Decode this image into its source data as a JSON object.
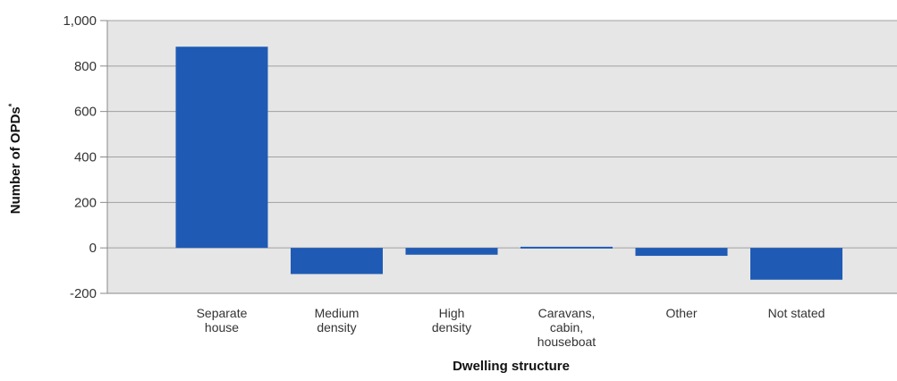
{
  "chart_data": {
    "type": "bar",
    "title": "",
    "xlabel": "Dwelling structure",
    "ylabel": "Number of OPDs",
    "ylabel_superscript": "*",
    "categories": [
      [
        "Separate",
        "house"
      ],
      [
        "Medium",
        "density"
      ],
      [
        "High",
        "density"
      ],
      [
        "Caravans,",
        "cabin,",
        "houseboat"
      ],
      [
        "Other"
      ],
      [
        "Not stated"
      ]
    ],
    "values": [
      885,
      -115,
      -30,
      5,
      -35,
      -140
    ],
    "yticks": [
      {
        "value": -200,
        "label": "-200"
      },
      {
        "value": 0,
        "label": "0"
      },
      {
        "value": 200,
        "label": "200"
      },
      {
        "value": 400,
        "label": "400"
      },
      {
        "value": 600,
        "label": "600"
      },
      {
        "value": 800,
        "label": "800"
      },
      {
        "value": 1000,
        "label": "1,000"
      }
    ],
    "ylim": [
      -200,
      1000
    ],
    "grid": true,
    "legend": "none",
    "colors": {
      "bar": "#1f5bb5",
      "plot_background": "#e6e6e6",
      "gridline": "#a0a0a0"
    }
  }
}
